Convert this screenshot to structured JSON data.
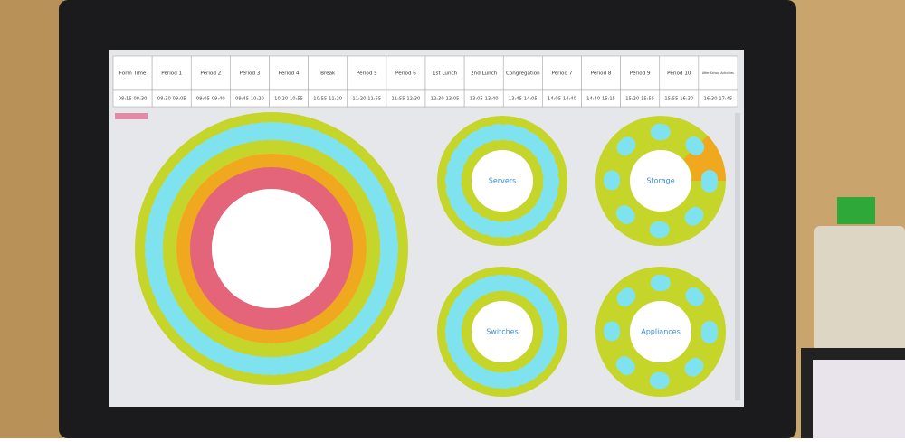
{
  "schedule": {
    "columns": [
      {
        "name": "Form Time",
        "time": "08:15-08:30"
      },
      {
        "name": "Period 1",
        "time": "08:30-09:05"
      },
      {
        "name": "Period 2",
        "time": "09:05-09:40"
      },
      {
        "name": "Period 3",
        "time": "09:45-10:20"
      },
      {
        "name": "Period 4",
        "time": "10:20-10:55"
      },
      {
        "name": "Break",
        "time": "10:55-11:20"
      },
      {
        "name": "Period 5",
        "time": "11:20-11:55"
      },
      {
        "name": "Period 6",
        "time": "11:55-12:30"
      },
      {
        "name": "1st Lunch",
        "time": "12:30-13:05"
      },
      {
        "name": "2nd Lunch",
        "time": "13:05-13:40"
      },
      {
        "name": "Congregation",
        "time": "13:45-14:05"
      },
      {
        "name": "Period 7",
        "time": "14:05-14:40"
      },
      {
        "name": "Period 8",
        "time": "14:40-15:15"
      },
      {
        "name": "Period 9",
        "time": "15:20-15:55"
      },
      {
        "name": "Period 10",
        "time": "15:55-16:30"
      },
      {
        "name": "After School Activities",
        "time": "16:30-17:45"
      }
    ]
  },
  "charts": {
    "labels": [
      "Servers",
      "Storage",
      "Switches",
      "Appliances"
    ]
  }
}
